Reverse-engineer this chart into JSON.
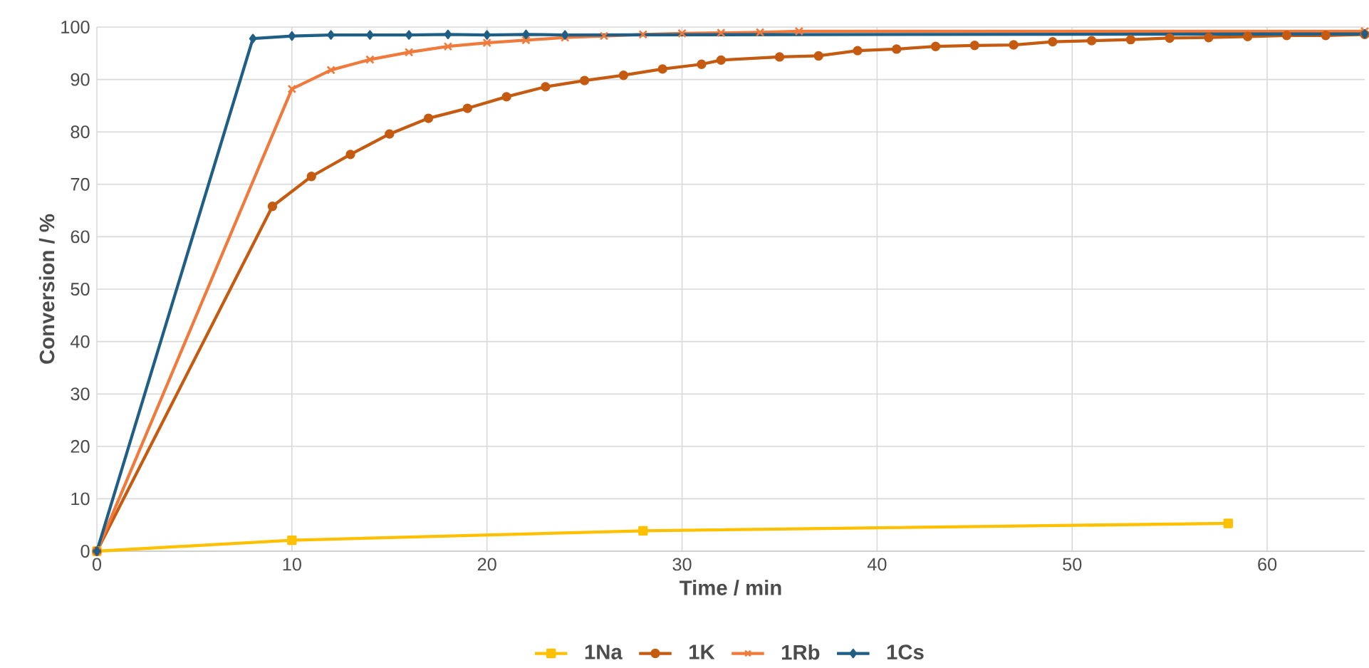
{
  "chart_data": {
    "type": "line",
    "xlabel": "Time / min",
    "ylabel": "Conversion / %",
    "xlim": [
      0,
      65
    ],
    "ylim": [
      0,
      100
    ],
    "xticks": [
      0,
      10,
      20,
      30,
      40,
      50,
      60
    ],
    "yticks": [
      0,
      10,
      20,
      30,
      40,
      50,
      60,
      70,
      80,
      90,
      100
    ],
    "grid": true,
    "legend": "bottom",
    "line_style": "solid",
    "series": [
      {
        "name": "1Na",
        "color": "#ffc000",
        "marker": "square",
        "x": [
          0,
          10,
          28,
          58
        ],
        "values": [
          0,
          2.1,
          3.9,
          5.3
        ]
      },
      {
        "name": "1K",
        "color": "#c55a11",
        "marker": "circle",
        "x": [
          0,
          9,
          11,
          13,
          15,
          17,
          19,
          21,
          23,
          25,
          27,
          29,
          31,
          32,
          35,
          37,
          39,
          41,
          43,
          45,
          47,
          49,
          51,
          53,
          55,
          57,
          59,
          61,
          63,
          65
        ],
        "values": [
          0,
          65.8,
          71.5,
          75.7,
          79.6,
          82.6,
          84.5,
          86.7,
          88.6,
          89.8,
          90.8,
          92,
          92.9,
          93.7,
          94.3,
          94.5,
          95.5,
          95.8,
          96.3,
          96.5,
          96.6,
          97.2,
          97.4,
          97.6,
          97.9,
          98,
          98.2,
          98.4,
          98.4,
          98.6
        ]
      },
      {
        "name": "1Rb",
        "color": "#f07a3c",
        "marker": "cross",
        "x": [
          0,
          10,
          12,
          14,
          16,
          18,
          20,
          22,
          24,
          26,
          28,
          30,
          32,
          34,
          36,
          65
        ],
        "values": [
          0,
          88.2,
          91.8,
          93.8,
          95.2,
          96.3,
          97,
          97.5,
          98,
          98.3,
          98.6,
          98.8,
          98.9,
          99,
          99.2,
          99.2
        ]
      },
      {
        "name": "1Cs",
        "color": "#1f5f85",
        "marker": "diamond",
        "x": [
          0,
          8,
          10,
          12,
          14,
          16,
          18,
          20,
          22,
          24,
          65
        ],
        "values": [
          0,
          97.8,
          98.3,
          98.5,
          98.5,
          98.5,
          98.6,
          98.5,
          98.6,
          98.5,
          98.7
        ]
      }
    ]
  }
}
